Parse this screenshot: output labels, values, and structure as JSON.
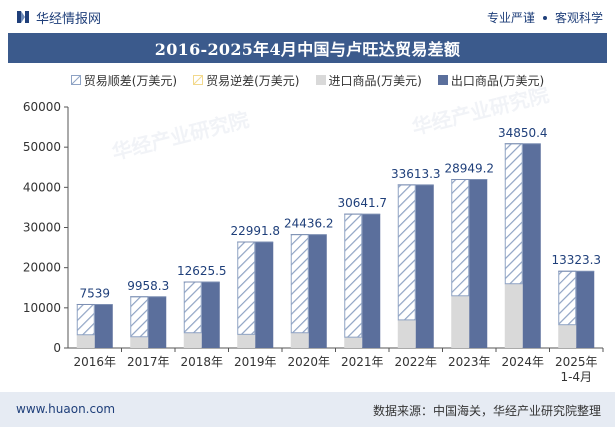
{
  "header": {
    "brand": "华经情报网",
    "tagline_left": "专业严谨",
    "tagline_right": "客观科学"
  },
  "title": "2016-2025年4月中国与卢旺达贸易差额",
  "legend": [
    {
      "label": "贸易顺差(万美元)",
      "key": "surplus"
    },
    {
      "label": "贸易逆差(万美元)",
      "key": "deficit"
    },
    {
      "label": "进口商品(万美元)",
      "key": "import"
    },
    {
      "label": "出口商品(万美元)",
      "key": "export"
    }
  ],
  "colors": {
    "header_bg": "#3b5a8c",
    "export": "#5b6f9c",
    "import": "#d9d9d9",
    "surplus_stroke": "#8fa3c4",
    "deficit": "#f2d98c",
    "footer_bg": "#e6ebf3"
  },
  "chart_data": {
    "type": "bar",
    "categories": [
      "2016年",
      "2017年",
      "2018年",
      "2019年",
      "2020年",
      "2021年",
      "2022年",
      "2023年",
      "2024年",
      "2025年\n1-4月"
    ],
    "series": [
      {
        "name": "贸易顺差(万美元)",
        "values": [
          7539,
          9958.3,
          12625.5,
          22991.8,
          24436.2,
          30641.7,
          33613.3,
          28949.2,
          34850.4,
          13323.3
        ]
      },
      {
        "name": "贸易逆差(万美元)",
        "values": [
          0,
          0,
          0,
          0,
          0,
          0,
          0,
          0,
          0,
          0
        ]
      },
      {
        "name": "进口商品(万美元)",
        "values": [
          3300,
          2800,
          3800,
          3400,
          3800,
          2700,
          7000,
          13000,
          16000,
          5800
        ]
      },
      {
        "name": "出口商品(万美元)",
        "values": [
          10839,
          12758.3,
          16425.5,
          26391.8,
          28236.2,
          33341.7,
          40613.3,
          41949.2,
          50850.4,
          19123.3
        ]
      }
    ],
    "data_labels": [
      "7539",
      "9958.3",
      "12625.5",
      "22991.8",
      "24436.2",
      "30641.7",
      "33613.3",
      "28949.2",
      "34850.4",
      "13323.3"
    ],
    "ylim": [
      0,
      60000
    ],
    "yticks": [
      "0",
      "10000",
      "20000",
      "30000",
      "40000",
      "50000",
      "60000"
    ],
    "grid": false,
    "legend_position": "top"
  },
  "footer": {
    "website": "www.huaon.com",
    "source": "数据来源：中国海关，华经产业研究院整理"
  }
}
